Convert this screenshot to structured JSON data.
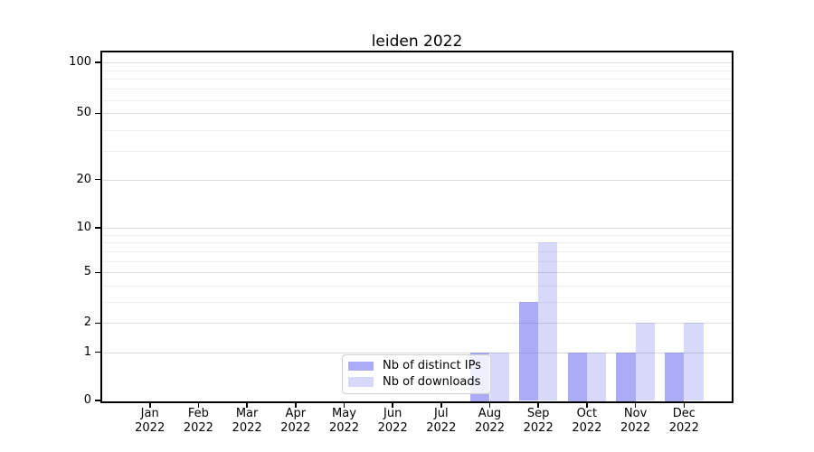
{
  "chart_data": {
    "type": "bar",
    "title": "leiden 2022",
    "year_label": "2022",
    "categories": [
      "Jan",
      "Feb",
      "Mar",
      "Apr",
      "May",
      "Jun",
      "Jul",
      "Aug",
      "Sep",
      "Oct",
      "Nov",
      "Dec"
    ],
    "series": [
      {
        "name": "Nb of distinct IPs",
        "color": "#5a5aee",
        "alpha": 0.5,
        "values": [
          0,
          0,
          0,
          0,
          0,
          0,
          0,
          1,
          3,
          1,
          1,
          1
        ]
      },
      {
        "name": "Nb of downloads",
        "color": "#5a5aee",
        "alpha": 0.24,
        "values": [
          0,
          0,
          0,
          0,
          0,
          0,
          0,
          1,
          8,
          1,
          2,
          2
        ]
      }
    ],
    "xlabel": "",
    "ylabel": "",
    "yticks": [
      0,
      1,
      2,
      5,
      10,
      20,
      50,
      100
    ],
    "minor_gridlines": [
      3,
      4,
      6,
      7,
      8,
      9,
      30,
      40,
      60,
      70,
      80,
      90
    ],
    "ylim": [
      0,
      116
    ],
    "yscale": "log-like (log10(value+1.1))",
    "grid": true,
    "legend_position": "lower-center-left",
    "colors": {
      "axis": "#000000",
      "major_grid": "#dcdcdc",
      "minor_grid": "#f0f0f0",
      "legend_border": "#d0d0d0"
    }
  }
}
